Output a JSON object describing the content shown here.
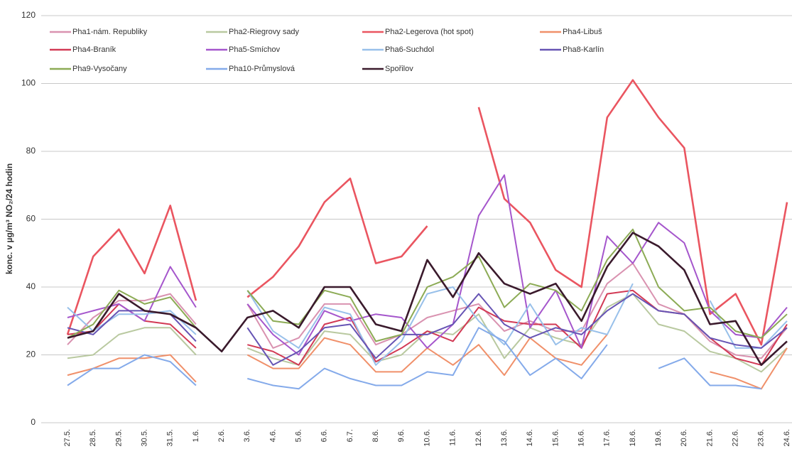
{
  "chart_data": {
    "type": "line",
    "y_label": "konc. v µg/m³ NO₂/24 hodin",
    "categories": [
      "27.5.",
      "28.5.",
      "29.5.",
      "30.5.",
      "31.5.",
      "1.6.",
      "2.6.",
      "3.6.",
      "4.6.",
      "5.6.",
      "6.6.",
      "6.7.",
      "8.6.",
      "9.6.",
      "10.6.",
      "11.6.",
      "12.6.",
      "13.6.",
      "14.6.",
      "15.6.",
      "16.6.",
      "17.6.",
      "18.6.",
      "19.6.",
      "20.6.",
      "21.6.",
      "22.6.",
      "23.6.",
      "24.6."
    ],
    "ylim": [
      0,
      120
    ],
    "yticks": [
      0,
      20,
      40,
      60,
      80,
      100,
      120
    ],
    "grid": true,
    "legend": "top-left",
    "series": [
      {
        "name": "Pha1-nám. Republiky",
        "color": "#d992b0",
        "values": [
          23,
          31,
          36,
          36,
          38,
          29,
          null,
          35,
          22,
          25,
          35,
          35,
          23,
          26,
          31,
          33,
          35,
          27,
          30,
          27,
          27,
          41,
          47,
          35,
          32,
          24,
          20,
          19,
          28
        ]
      },
      {
        "name": "Pha2-Riegrovy sady",
        "color": "#b9c9a0",
        "values": [
          19,
          20,
          26,
          28,
          28,
          20,
          null,
          22,
          19,
          17,
          27,
          26,
          18,
          20,
          27,
          26,
          32,
          19,
          28,
          25,
          23,
          34,
          38,
          29,
          27,
          21,
          19,
          15,
          22
        ]
      },
      {
        "name": "Pha2-Legerova (hot spot)",
        "color": "#ea5560",
        "values": [
          26,
          49,
          57,
          44,
          64,
          36,
          null,
          37,
          43,
          52,
          65,
          72,
          47,
          49,
          58,
          null,
          93,
          66,
          59,
          45,
          40,
          90,
          101,
          90,
          81,
          32,
          38,
          23,
          65
        ]
      },
      {
        "name": "Pha4-Libuš",
        "color": "#f0906a",
        "values": [
          14,
          16,
          19,
          19,
          20,
          12,
          null,
          20,
          16,
          16,
          25,
          23,
          15,
          15,
          22,
          17,
          23,
          14,
          25,
          19,
          17,
          26,
          null,
          null,
          null,
          15,
          13,
          10,
          22
        ]
      },
      {
        "name": "Pha4-Braník",
        "color": "#d23a55",
        "values": [
          26,
          27,
          35,
          30,
          29,
          22,
          null,
          23,
          21,
          17,
          29,
          31,
          18,
          22,
          27,
          24,
          34,
          30,
          29,
          29,
          22,
          38,
          39,
          33,
          32,
          25,
          19,
          17,
          29
        ]
      },
      {
        "name": "Pha5-Smíchov",
        "color": "#a556cc",
        "values": [
          31,
          33,
          35,
          30,
          46,
          34,
          null,
          35,
          26,
          20,
          33,
          30,
          32,
          31,
          22,
          29,
          61,
          73,
          28,
          39,
          22,
          55,
          47,
          59,
          53,
          33,
          26,
          25,
          34
        ]
      },
      {
        "name": "Pha6-Suchdol",
        "color": "#98c0ea",
        "values": [
          34,
          27,
          32,
          32,
          33,
          26,
          null,
          39,
          27,
          22,
          34,
          32,
          17,
          24,
          38,
          40,
          30,
          23,
          35,
          23,
          28,
          26,
          41,
          null,
          null,
          36,
          22,
          22,
          30
        ]
      },
      {
        "name": "Pha8-Karlín",
        "color": "#6654b4",
        "values": [
          28,
          26,
          33,
          33,
          32,
          24,
          null,
          28,
          17,
          21,
          28,
          29,
          19,
          26,
          26,
          29,
          38,
          29,
          25,
          28,
          26,
          33,
          38,
          33,
          32,
          25,
          23,
          22,
          28
        ]
      },
      {
        "name": "Pha9-Vysočany",
        "color": "#8cab55",
        "values": [
          25,
          29,
          39,
          35,
          37,
          28,
          null,
          39,
          30,
          29,
          39,
          37,
          24,
          26,
          40,
          43,
          49,
          34,
          41,
          39,
          33,
          48,
          57,
          40,
          33,
          34,
          27,
          25,
          32
        ]
      },
      {
        "name": "Pha10-Průmyslová",
        "color": "#84aaea",
        "values": [
          11,
          16,
          16,
          20,
          18,
          11,
          null,
          13,
          11,
          10,
          16,
          13,
          11,
          11,
          15,
          14,
          28,
          24,
          14,
          19,
          13,
          23,
          null,
          16,
          19,
          11,
          11,
          10,
          null
        ]
      },
      {
        "name": "Spořilov",
        "color": "#3a1a2c",
        "values": [
          25,
          27,
          38,
          33,
          32,
          28,
          21,
          31,
          33,
          28,
          40,
          40,
          29,
          27,
          48,
          37,
          50,
          41,
          38,
          41,
          30,
          46,
          56,
          52,
          45,
          29,
          30,
          17,
          24
        ]
      }
    ]
  }
}
